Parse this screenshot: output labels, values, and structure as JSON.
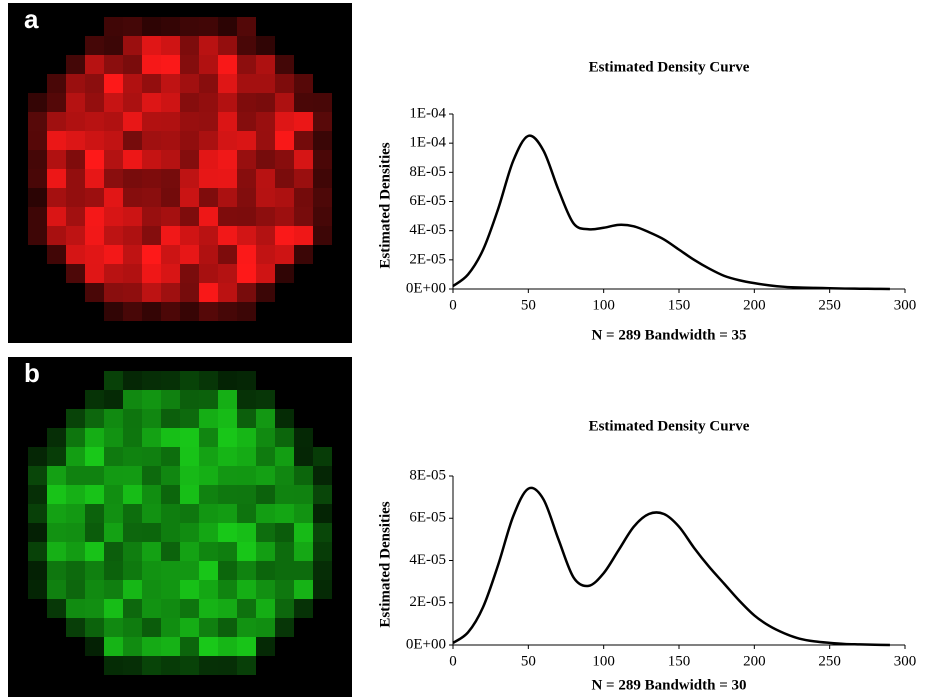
{
  "chart_data": [
    {
      "type": "line",
      "panel_label": "a",
      "title": "Estimated Density Curve",
      "y_label": "Estimated Densities",
      "x_label": "N = 289 Bandwidth = 35",
      "color": "#000000",
      "x": [
        0,
        10,
        20,
        30,
        40,
        50,
        60,
        70,
        80,
        90,
        100,
        110,
        120,
        130,
        140,
        150,
        160,
        170,
        180,
        190,
        200,
        210,
        220,
        230,
        240,
        250,
        260,
        270,
        280,
        290
      ],
      "values": [
        2e-06,
        1e-05,
        2.7e-05,
        5.5e-05,
        8.8e-05,
        0.000105,
        9.5e-05,
        6.8e-05,
        4.5e-05,
        4.1e-05,
        4.2e-05,
        4.4e-05,
        4.3e-05,
        3.9e-05,
        3.4e-05,
        2.7e-05,
        2e-05,
        1.4e-05,
        9e-06,
        6e-06,
        4e-06,
        2.5e-06,
        1.5e-06,
        1e-06,
        8e-07,
        5e-07,
        3e-07,
        2e-07,
        1e-07,
        0
      ],
      "xlim": [
        0,
        300
      ],
      "xticks": [
        0,
        50,
        100,
        150,
        200,
        250,
        300
      ],
      "ylim": [
        0,
        0.00012
      ],
      "yticks": [
        {
          "value": 0,
          "label": "0E+00"
        },
        {
          "value": 2e-05,
          "label": "2E-05"
        },
        {
          "value": 4e-05,
          "label": "4E-05"
        },
        {
          "value": 6e-05,
          "label": "6E-05"
        },
        {
          "value": 8e-05,
          "label": "8E-05"
        },
        {
          "value": 0.0001,
          "label": "1E-04"
        },
        {
          "value": 0.00012,
          "label": "1E-04"
        }
      ]
    },
    {
      "type": "line",
      "panel_label": "b",
      "title": "Estimated Density Curve",
      "y_label": "Estimated Densities",
      "x_label": "N = 289 Bandwidth = 30",
      "color": "#000000",
      "x": [
        0,
        10,
        20,
        30,
        40,
        50,
        60,
        70,
        80,
        90,
        100,
        110,
        120,
        130,
        140,
        150,
        160,
        170,
        180,
        190,
        200,
        210,
        220,
        230,
        240,
        250,
        260,
        270,
        280,
        290
      ],
      "values": [
        1e-06,
        6e-06,
        1.8e-05,
        3.8e-05,
        6.1e-05,
        7.4e-05,
        6.9e-05,
        5e-05,
        3.2e-05,
        2.8e-05,
        3.4e-05,
        4.5e-05,
        5.6e-05,
        6.2e-05,
        6.2e-05,
        5.6e-05,
        4.6e-05,
        3.7e-05,
        2.9e-05,
        2.1e-05,
        1.4e-05,
        9e-06,
        5.5e-06,
        3e-06,
        1.7e-06,
        1e-06,
        5e-07,
        3e-07,
        1e-07,
        0
      ],
      "xlim": [
        0,
        300
      ],
      "xticks": [
        0,
        50,
        100,
        150,
        200,
        250,
        300
      ],
      "ylim": [
        0,
        8e-05
      ],
      "yticks": [
        {
          "value": 0,
          "label": "0E+00"
        },
        {
          "value": 2e-05,
          "label": "2E-05"
        },
        {
          "value": 4e-05,
          "label": "4E-05"
        },
        {
          "value": 6e-05,
          "label": "6E-05"
        },
        {
          "value": 8e-05,
          "label": "8E-05"
        }
      ]
    }
  ]
}
